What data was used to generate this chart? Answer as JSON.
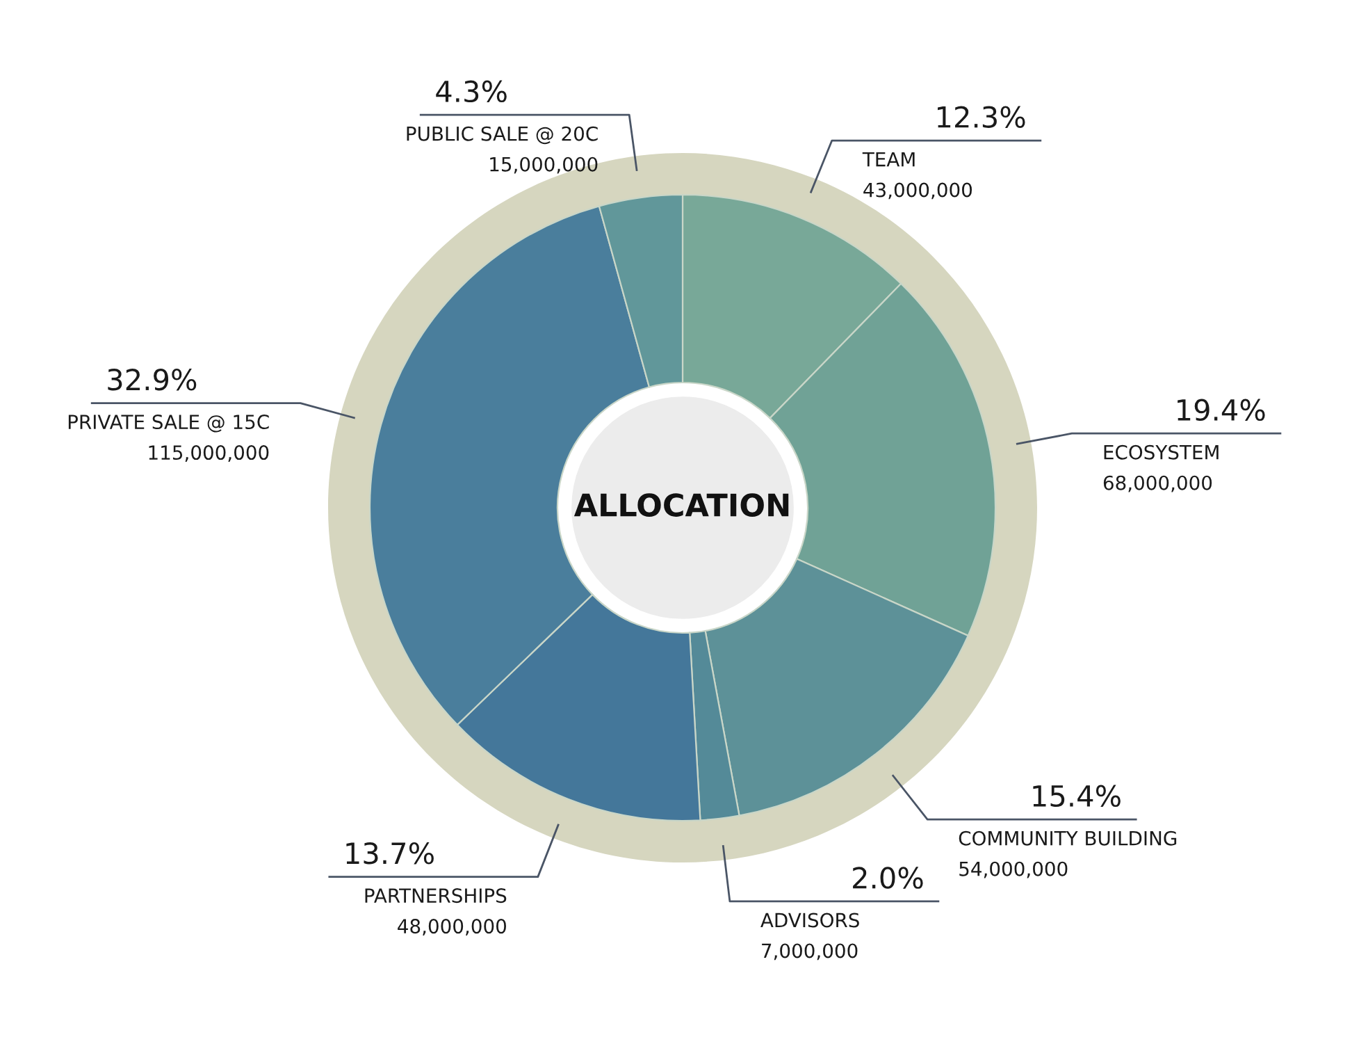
{
  "chart_data": {
    "type": "donut",
    "title": "ALLOCATION",
    "categories": [
      "TEAM",
      "ECOSYSTEM",
      "COMMUNITY BUILDING",
      "ADVISORS",
      "PARTNERSHIPS",
      "PRIVATE SALE @ 15C",
      "PUBLIC SALE @ 20C"
    ],
    "values": [
      12.3,
      19.4,
      15.4,
      2.0,
      13.7,
      32.9,
      4.3
    ],
    "value_labels": [
      "12.3%",
      "19.4%",
      "15.4%",
      "2.0%",
      "13.7%",
      "32.9%",
      "4.3%"
    ],
    "annotations": [
      "43,000,000",
      "68,000,000",
      "54,000,000",
      "7,000,000",
      "48,000,000",
      "115,000,000",
      "15,000,000"
    ],
    "colors": [
      "#78a898",
      "#70a296",
      "#5d9198",
      "#548a98",
      "#44779a",
      "#4a7e9c",
      "#61979a"
    ],
    "legend": false
  }
}
